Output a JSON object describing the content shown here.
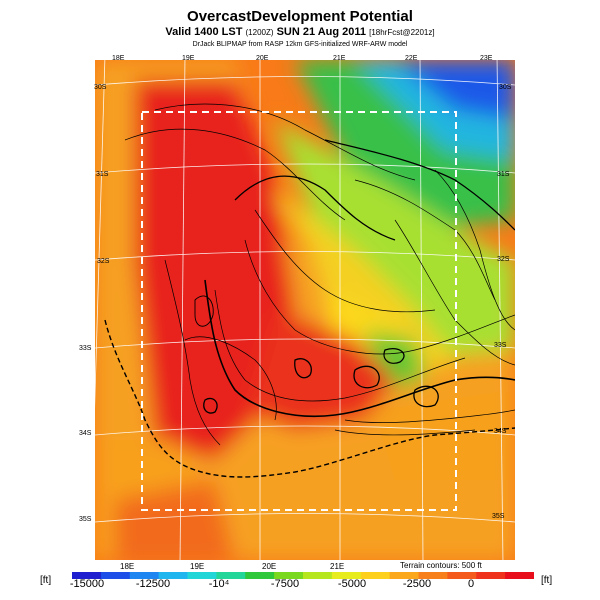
{
  "header": {
    "title": "OvercastDevelopment Potential",
    "subtitle_main": "Valid 1400 LST",
    "subtitle_utc": "(1200Z)",
    "subtitle_date": "SUN 21 Aug 2011",
    "subtitle_fcst": "[18hrFcst@2201z]",
    "credit": "DrJack BLIPMAP from RASP 12km GFS-initialized WRF-ARW model"
  },
  "map": {
    "lon_labels_top": [
      "18E",
      "19E",
      "20E",
      "21E",
      "22E",
      "23E"
    ],
    "lon_labels_bottom": [
      "18E",
      "19E",
      "20E",
      "21E"
    ],
    "lat_labels_left": [
      "30S",
      "31S",
      "32S",
      "33S",
      "34S",
      "35S"
    ],
    "lat_labels_right": [
      "30S",
      "31S",
      "32S",
      "33S",
      "34S",
      "35S"
    ],
    "terrain_note": "Terrain contours: 500 ft",
    "region_outline": "dashed white rectangle"
  },
  "colorbar": {
    "unit_left": "[ft]",
    "unit_right": "[ft]",
    "ticks": [
      "-15000",
      "-12500",
      "-10⁴",
      "-7500",
      "-5000",
      "-2500",
      "0"
    ],
    "colors": [
      "#1f1fd0",
      "#1d4fe8",
      "#1e86f0",
      "#1fb6f0",
      "#20d6d6",
      "#22d69a",
      "#2ec83a",
      "#7ad81e",
      "#b6e61e",
      "#e6ec1e",
      "#fcd01c",
      "#fca81c",
      "#f8801c",
      "#f45a1c",
      "#ee321c",
      "#e80e1c"
    ]
  }
}
